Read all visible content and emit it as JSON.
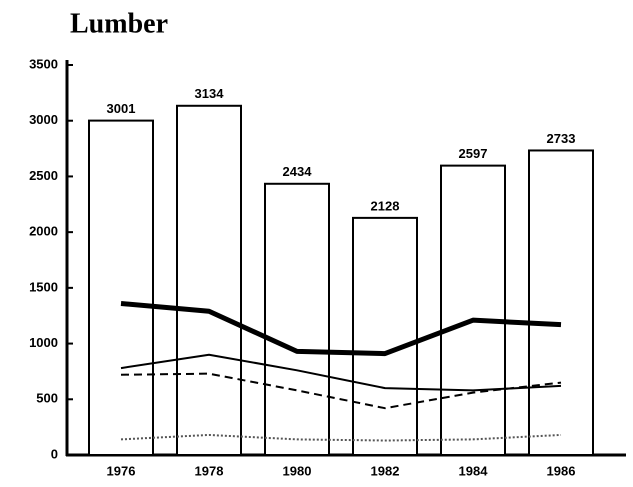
{
  "chart_data": {
    "type": "bar",
    "title": "Lumber",
    "categories": [
      "1976",
      "1978",
      "1980",
      "1982",
      "1984",
      "1986"
    ],
    "values": [
      3001,
      3134,
      2434,
      2128,
      2597,
      2733
    ],
    "color": "#ffffff",
    "ylim": [
      0,
      3500
    ],
    "yticks": [
      0,
      500,
      1000,
      1500,
      2000,
      2500,
      3000,
      3500
    ],
    "series": [
      {
        "color": "#000000",
        "width": 5,
        "dash": "none",
        "values": [
          1360,
          1290,
          930,
          910,
          1210,
          1170
        ]
      },
      {
        "color": "#000000",
        "width": 2,
        "dash": "none",
        "values": [
          780,
          900,
          760,
          600,
          580,
          620
        ]
      },
      {
        "color": "#000000",
        "width": 2,
        "dash": "8 5",
        "values": [
          720,
          730,
          580,
          420,
          560,
          650
        ]
      },
      {
        "color": "#555555",
        "width": 2,
        "dash": "2 2",
        "values": [
          140,
          180,
          140,
          130,
          140,
          180
        ]
      }
    ]
  }
}
